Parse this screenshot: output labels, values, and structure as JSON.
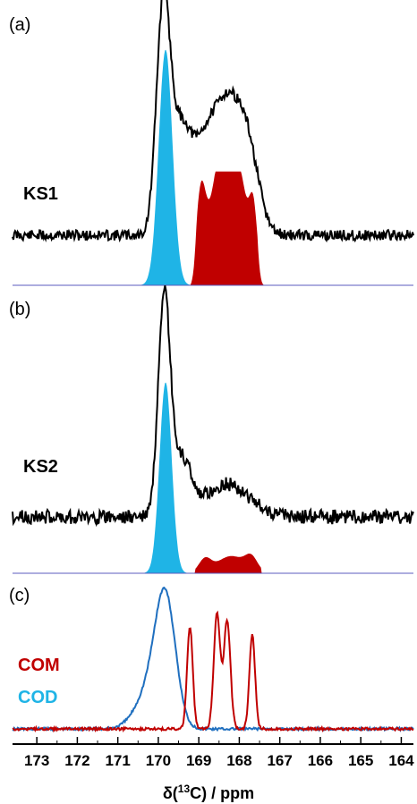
{
  "chart_data": {
    "type": "line",
    "x_axis": {
      "label_prefix": "δ(",
      "label_sup": "13",
      "label_suffix": "C) / ppm",
      "range": [
        173.6,
        163.7
      ],
      "reversed": true,
      "ticks": [
        "173",
        "172",
        "171",
        "170",
        "169",
        "168",
        "167",
        "166",
        "165",
        "164"
      ]
    },
    "colors": {
      "experimental": "#000000",
      "cod_fill": "#1fb4e6",
      "com_fill": "#c00000",
      "cod_line": "#1f6fbf",
      "com_line": "#c00000",
      "baseline": "#5b5bbf"
    },
    "panels": [
      {
        "panel_label": "(a)",
        "sample_label": "KS1",
        "experimental_peaks": [
          {
            "center": 169.88,
            "height": 1.0,
            "width": 0.17
          },
          {
            "center": 169.45,
            "height": 0.45,
            "width": 0.25
          },
          {
            "center": 168.85,
            "height": 0.38,
            "width": 0.3
          },
          {
            "center": 168.3,
            "height": 0.5,
            "width": 0.3
          },
          {
            "center": 167.8,
            "height": 0.38,
            "width": 0.28
          }
        ],
        "cod_component": {
          "center": 169.82,
          "height": 0.87,
          "width": 0.17
        },
        "com_component_peaks": [
          {
            "center": 168.95,
            "height": 0.32,
            "width": 0.12
          },
          {
            "center": 168.6,
            "height": 0.25,
            "width": 0.2
          },
          {
            "center": 168.3,
            "height": 0.4,
            "width": 0.22
          },
          {
            "center": 167.95,
            "height": 0.3,
            "width": 0.18
          },
          {
            "center": 167.65,
            "height": 0.25,
            "width": 0.1
          }
        ]
      },
      {
        "panel_label": "(b)",
        "sample_label": "KS2",
        "experimental_peaks": [
          {
            "center": 169.85,
            "height": 1.0,
            "width": 0.15
          },
          {
            "center": 169.4,
            "height": 0.25,
            "width": 0.22
          },
          {
            "center": 168.3,
            "height": 0.15,
            "width": 0.55
          }
        ],
        "cod_component": {
          "center": 169.82,
          "height": 0.89,
          "width": 0.15
        },
        "com_component_peaks": [
          {
            "center": 168.85,
            "height": 0.06,
            "width": 0.15
          },
          {
            "center": 168.2,
            "height": 0.08,
            "width": 0.35
          },
          {
            "center": 167.7,
            "height": 0.06,
            "width": 0.15
          }
        ]
      },
      {
        "panel_label": "(c)",
        "legend": [
          {
            "label": "COM",
            "color": "#c00000"
          },
          {
            "label": "COD",
            "color": "#1fb4e6"
          }
        ],
        "series": [
          {
            "name": "COD",
            "peaks": [
              {
                "center": 169.82,
                "height": 0.95,
                "width": 0.25
              },
              {
                "center": 170.2,
                "height": 0.3,
                "width": 0.35
              }
            ]
          },
          {
            "name": "COM",
            "peaks": [
              {
                "center": 169.22,
                "height": 0.82,
                "width": 0.07
              },
              {
                "center": 168.55,
                "height": 0.92,
                "width": 0.08
              },
              {
                "center": 168.3,
                "height": 0.87,
                "width": 0.08
              },
              {
                "center": 167.68,
                "height": 0.75,
                "width": 0.07
              }
            ]
          }
        ]
      }
    ]
  }
}
